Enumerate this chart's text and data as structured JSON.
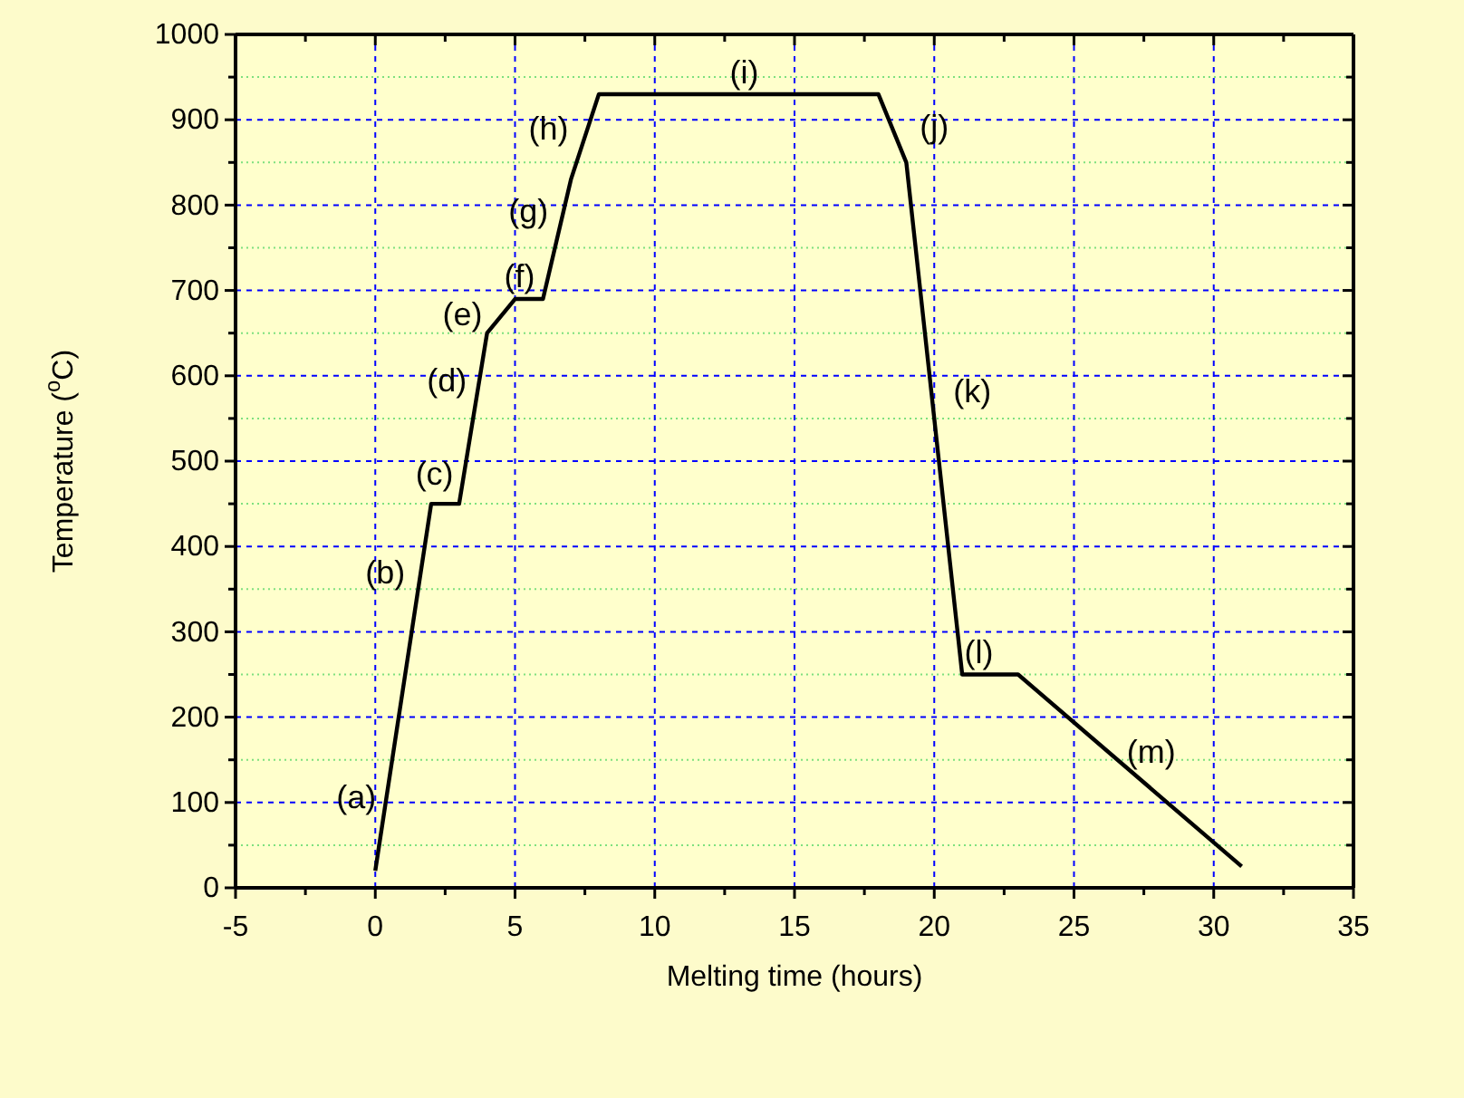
{
  "chart_data": {
    "type": "line",
    "xlabel": "Melting time (hours)",
    "ylabel": "Temperature ($^{o}$C)",
    "x": [
      0,
      2,
      3,
      4,
      5,
      6,
      7,
      8,
      18,
      19,
      21,
      23,
      31
    ],
    "series": [
      {
        "color": "#000000",
        "values": [
          20,
          450,
          450,
          650,
          690,
          690,
          830,
          930,
          930,
          850,
          250,
          250,
          25
        ]
      }
    ],
    "xlim": [
      -5,
      35
    ],
    "xticks": [
      -5,
      {
        "value": -2.5,
        "label": null
      },
      0,
      {
        "value": 2.5,
        "label": null
      },
      5,
      {
        "value": 7.5,
        "label": null
      },
      10,
      {
        "value": 12.5,
        "label": null
      },
      15,
      {
        "value": 17.5,
        "label": null
      },
      20,
      {
        "value": 22.5,
        "label": null
      },
      25,
      {
        "value": 27.5,
        "label": null
      },
      30,
      {
        "value": 32.5,
        "label": null
      },
      35
    ],
    "ylim": [
      0,
      1000
    ],
    "yticks": [
      0,
      {
        "value": 50,
        "label": null
      },
      100,
      {
        "value": 150,
        "label": null
      },
      200,
      {
        "value": 250,
        "label": null
      },
      300,
      {
        "value": 350,
        "label": null
      },
      400,
      {
        "value": 450,
        "label": null
      },
      500,
      {
        "value": 550,
        "label": null
      },
      600,
      {
        "value": 650,
        "label": null
      },
      700,
      {
        "value": 750,
        "label": null
      },
      800,
      {
        "value": 850,
        "label": null
      },
      900,
      {
        "value": 950,
        "label": null
      },
      1000
    ],
    "grid": true,
    "marker": "none",
    "line_style": "solid",
    "annotations": [
      "(a)",
      "(b)",
      "(c)",
      "(d)",
      "(e)",
      "(f)",
      "(g)",
      "(h)",
      "(i)",
      "(j)",
      "(k)",
      "(l)",
      "(m)"
    ]
  }
}
